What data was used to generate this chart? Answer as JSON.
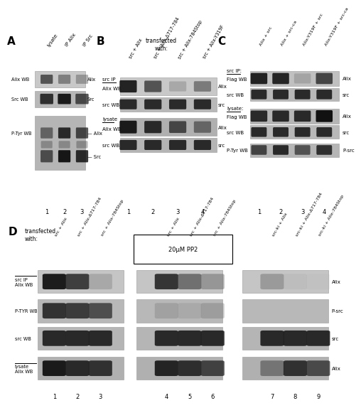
{
  "panel_A": {
    "label": "A",
    "col_labels": [
      "lysate",
      "IP Alix",
      "IP Src"
    ],
    "lane_nums": [
      "1",
      "2",
      "3"
    ]
  },
  "panel_B": {
    "label": "B",
    "col_labels": [
      "src + Alix",
      "src + Alix-Δ717-784",
      "src + Alix-784Stop",
      "src + Alix-Y319F"
    ],
    "lane_nums": [
      "1",
      "2",
      "3",
      "4"
    ]
  },
  "panel_C": {
    "label": "C",
    "col_labels": [
      "Alix + src",
      "Alix + src-ca",
      "Alix-Y319F + src",
      "Alix-Y319F + src-ca"
    ],
    "lane_nums": [
      "1",
      "2",
      "3",
      "4"
    ]
  },
  "panel_D": {
    "label": "D",
    "col_labels_g1": [
      "src + Alix",
      "src + Alix-Δ717-784",
      "src + Alix-784Stop"
    ],
    "col_labels_g2": [
      "src + Alix",
      "src + Alix-Δ717-784",
      "src + Alix-784Stop"
    ],
    "col_labels_g3": [
      "src-ki + Alix",
      "src-ki + Alix-Δ717-784",
      "src-ki + Alix-784Stop"
    ],
    "box_label": "20μM PP2",
    "lane_nums": [
      "1",
      "2",
      "3",
      "4",
      "5",
      "6",
      "7",
      "8",
      "9"
    ]
  }
}
